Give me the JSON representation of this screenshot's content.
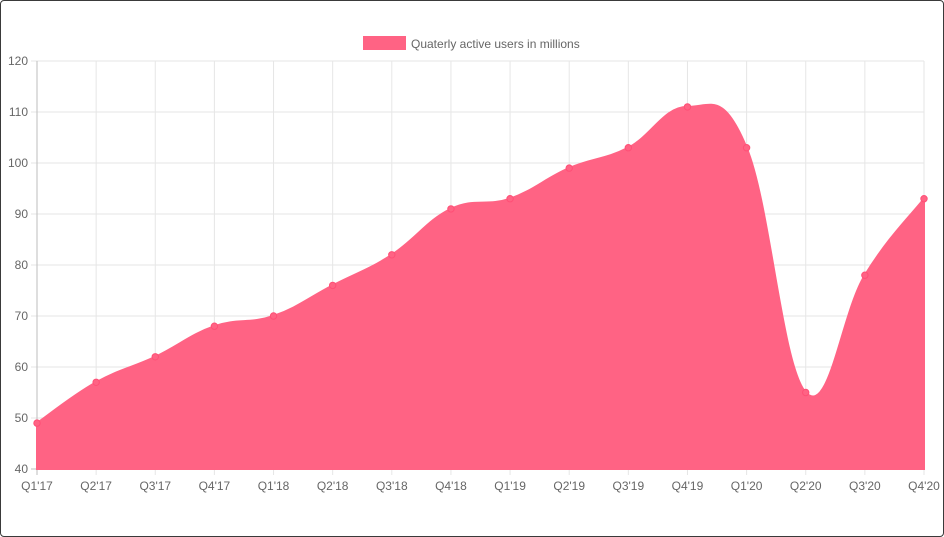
{
  "chart_data": {
    "type": "area",
    "categories": [
      "Q1'17",
      "Q2'17",
      "Q3'17",
      "Q4'17",
      "Q1'18",
      "Q2'18",
      "Q3'18",
      "Q4'18",
      "Q1'19",
      "Q2'19",
      "Q3'19",
      "Q4'19",
      "Q1'20",
      "Q2'20",
      "Q3'20",
      "Q4'20"
    ],
    "series": [
      {
        "name": "Quaterly active users in millions",
        "values": [
          49,
          57,
          62,
          68,
          70,
          76,
          82,
          91,
          93,
          99,
          103,
          111,
          103,
          55,
          78,
          93
        ],
        "color": "#ff6384"
      }
    ],
    "y_ticks": [
      "120",
      "110",
      "100",
      "90",
      "80",
      "70",
      "60",
      "50",
      "40"
    ],
    "ylim": [
      40,
      120
    ],
    "grid": true,
    "legend_position": "top"
  }
}
